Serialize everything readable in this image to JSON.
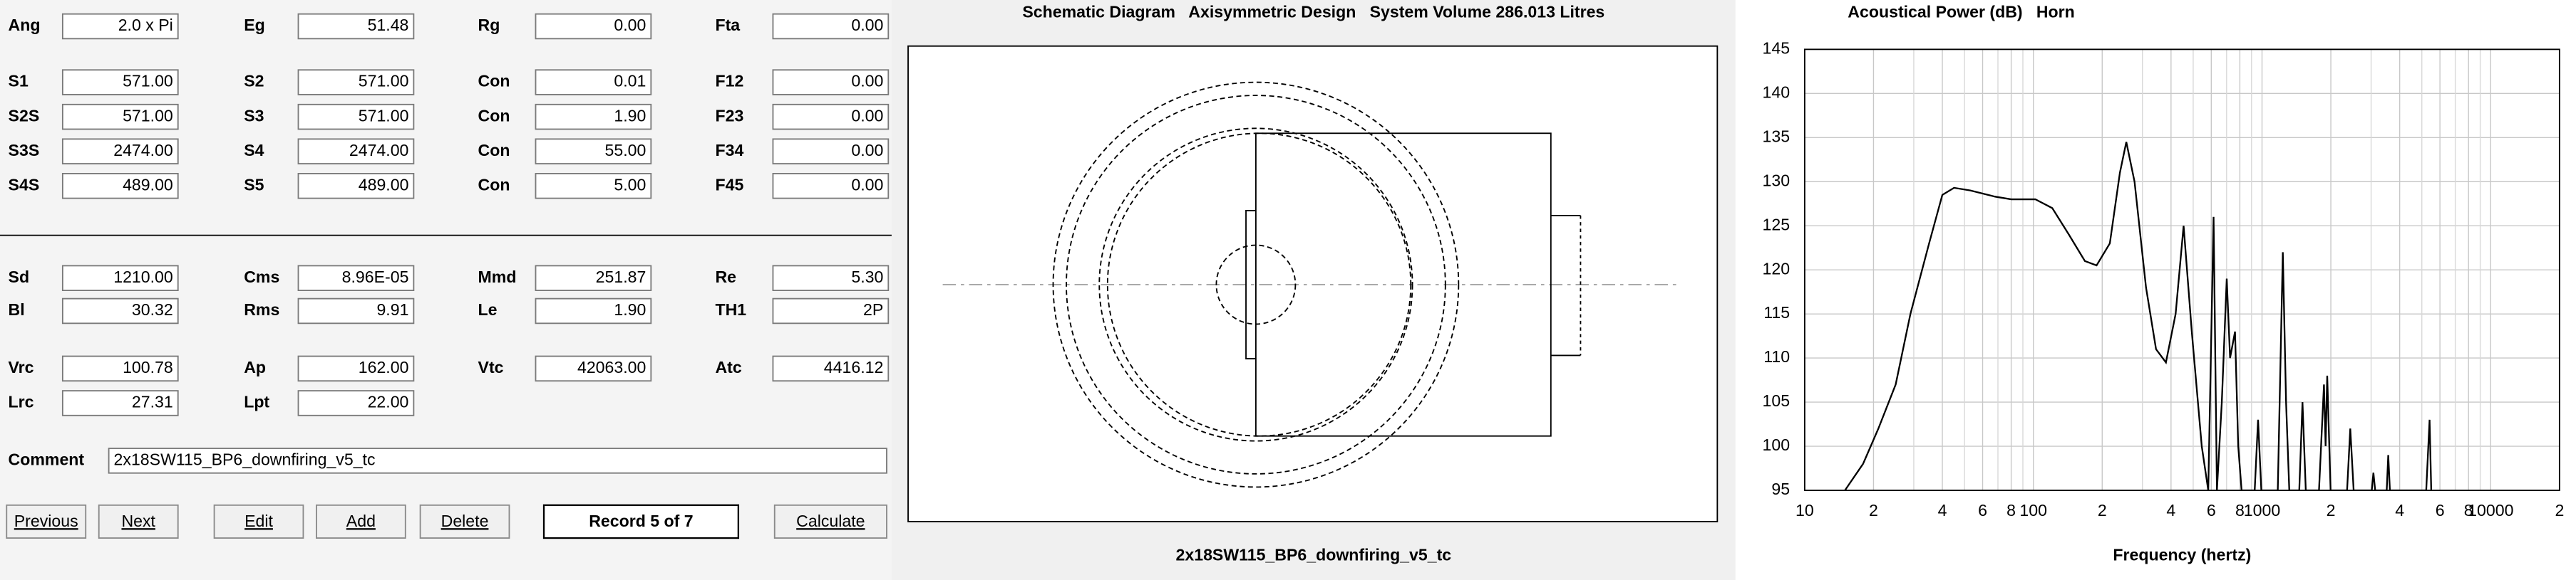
{
  "form": {
    "rows": [
      [
        {
          "label": "Ang",
          "value": "2.0 x Pi"
        },
        {
          "label": "Eg",
          "value": "51.48"
        },
        {
          "label": "Rg",
          "value": "0.00"
        },
        {
          "label": "Fta",
          "value": "0.00"
        }
      ],
      [
        {
          "label": "S1",
          "value": "571.00",
          "color": "#e00000"
        },
        {
          "label": "S2",
          "value": "571.00",
          "color": "#e00000"
        },
        {
          "label": "Con",
          "value": "0.01"
        },
        {
          "label": "F12",
          "value": "0.00"
        }
      ],
      [
        {
          "label": "S2S",
          "value": "571.00",
          "color": "#e00000"
        },
        {
          "label": "S3",
          "value": "571.00",
          "color": "#e00000"
        },
        {
          "label": "Con",
          "value": "1.90"
        },
        {
          "label": "F23",
          "value": "0.00"
        }
      ],
      [
        {
          "label": "S3S",
          "value": "2474.00",
          "color": "#e00000"
        },
        {
          "label": "S4",
          "value": "2474.00",
          "color": "#e00000"
        },
        {
          "label": "Con",
          "value": "55.00"
        },
        {
          "label": "F34",
          "value": "0.00"
        }
      ],
      [
        {
          "label": "S4S",
          "value": "489.00",
          "color": "#e00000"
        },
        {
          "label": "S5",
          "value": "489.00",
          "color": "#e00000"
        },
        {
          "label": "Con",
          "value": "5.00"
        },
        {
          "label": "F45",
          "value": "0.00"
        }
      ],
      [
        {
          "label": "Sd",
          "value": "1210.00"
        },
        {
          "label": "Cms",
          "value": "8.96E-05"
        },
        {
          "label": "Mmd",
          "value": "251.87"
        },
        {
          "label": "Re",
          "value": "5.30"
        }
      ],
      [
        {
          "label": "Bl",
          "value": "30.32"
        },
        {
          "label": "Rms",
          "value": "9.91"
        },
        {
          "label": "Le",
          "value": "1.90",
          "color": "#008000"
        },
        {
          "label": "TH1",
          "value": "2P",
          "color": "#e00000"
        }
      ],
      [
        {
          "label": "Vrc",
          "value": "100.78"
        },
        {
          "label": "Ap",
          "value": "162.00"
        },
        {
          "label": "Vtc",
          "value": "42063.00"
        },
        {
          "label": "Atc",
          "value": "4416.12"
        }
      ],
      [
        {
          "label": "Lrc",
          "value": "27.31"
        },
        {
          "label": "Lpt",
          "value": "22.00"
        }
      ]
    ],
    "comment": {
      "label": "Comment",
      "value": "2x18SW115_BP6_downfiring_v5_tc"
    },
    "buttons": [
      "Previous",
      "Next",
      "Edit",
      "Add",
      "Delete",
      "Calculate"
    ],
    "record": "Record 5 of 7"
  },
  "schematic": {
    "title": "Schematic Diagram   Axisymmetric Design   System Volume 286.013 Litres",
    "caption": "2x18SW115_BP6_downfiring_v5_tc"
  },
  "chart_data": {
    "type": "line",
    "title": "Acoustical Power (dB)   Horn",
    "xlabel": "Frequency (hertz)",
    "log_x": true,
    "grid": true,
    "xlim": [
      10,
      20000
    ],
    "ylim": [
      95,
      145
    ],
    "yticks": [
      95,
      100,
      105,
      110,
      115,
      120,
      125,
      130,
      135,
      140,
      145
    ],
    "xticks": [
      10,
      {
        "value": 20,
        "label": "2"
      },
      {
        "value": 40,
        "label": "4"
      },
      {
        "value": 60,
        "label": "6"
      },
      {
        "value": 80,
        "label": "8"
      },
      100,
      {
        "value": 200,
        "label": "2"
      },
      {
        "value": 400,
        "label": "4"
      },
      {
        "value": 600,
        "label": "6"
      },
      {
        "value": 800,
        "label": "8"
      },
      1000,
      {
        "value": 2000,
        "label": "2"
      },
      {
        "value": 4000,
        "label": "4"
      },
      {
        "value": 6000,
        "label": "6"
      },
      {
        "value": 8000,
        "label": "8"
      },
      10000,
      {
        "value": 20000,
        "label": "2"
      }
    ],
    "xminorticks": [
      30,
      50,
      70,
      90,
      300,
      500,
      700,
      900,
      3000,
      5000,
      7000,
      9000
    ],
    "x": [
      15,
      18,
      21,
      25,
      29,
      35,
      40,
      45,
      53,
      68,
      80,
      102,
      121,
      143,
      168,
      189,
      216,
      239,
      255,
      277,
      311,
      344,
      380,
      419,
      454,
      493,
      545,
      582,
      614,
      635,
      667,
      701,
      725,
      762,
      787,
      814,
      929,
      961,
      993,
      1172,
      1233,
      1274,
      1316,
      1455,
      1503,
      1554,
      1775,
      1866,
      1897,
      1928,
      1995,
      2355,
      2432,
      2516,
      3020,
      3070,
      3125,
      3510,
      3565,
      3625,
      5225,
      5405,
      5495
    ],
    "series": [
      {
        "name": "Acoustical Power",
        "color": "#000000",
        "values": [
          95,
          98,
          102,
          107,
          115,
          123,
          128.5,
          129.3,
          129,
          128.3,
          128,
          128,
          127,
          124,
          121,
          120.5,
          123,
          131,
          134.5,
          130,
          118,
          111,
          109.5,
          115,
          125,
          113,
          100,
          95,
          126,
          95,
          105,
          119,
          110,
          113,
          100,
          95,
          95,
          103,
          95,
          95,
          122,
          105,
          95,
          95,
          105,
          95,
          95,
          107,
          100,
          108,
          95,
          95,
          102,
          95,
          95,
          97,
          95,
          95,
          99,
          95,
          95,
          103,
          95
        ]
      }
    ]
  }
}
